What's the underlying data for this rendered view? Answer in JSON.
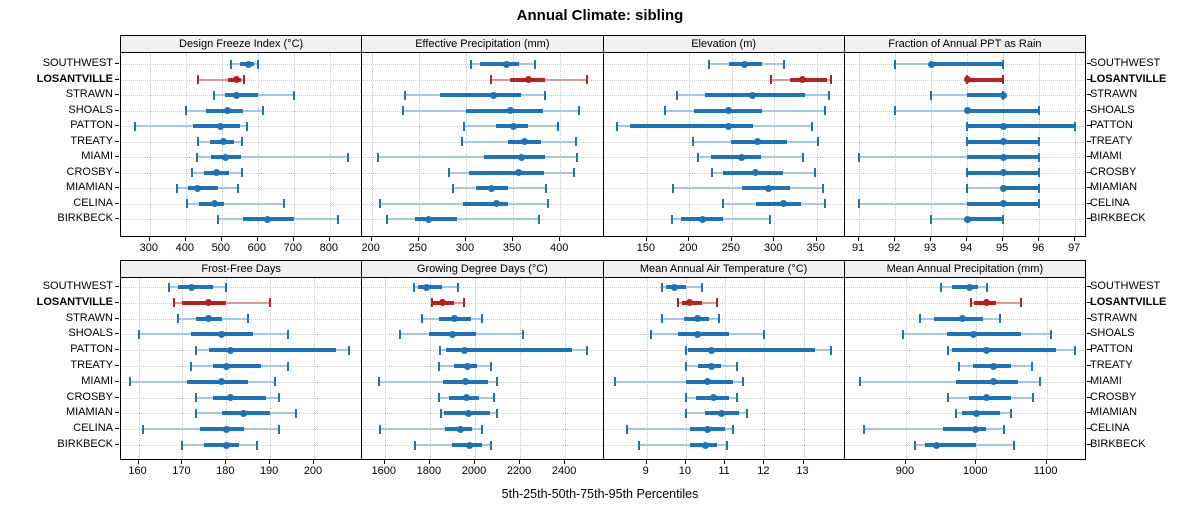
{
  "chart_data": {
    "type": "scatter",
    "style": "percentile-dot-whisker-lattice",
    "title": "Annual Climate: sibling",
    "caption": "5th-25th-50th-75th-95th Percentiles",
    "percentiles": [
      5,
      25,
      50,
      75,
      95
    ],
    "legend_position": "none",
    "grid": "dotted",
    "series": [
      "SOUTHWEST",
      "LOSANTVILLE",
      "STRAWN",
      "SHOALS",
      "PATTON",
      "TREATY",
      "MIAMI",
      "CROSBY",
      "MIAMIAN",
      "CELINA",
      "BIRKBECK"
    ],
    "highlighted_series": "LOSANTVILLE",
    "colors": {
      "normal": "#2171b5",
      "normal_light": "#a3c8e2",
      "highlight": "#b22222",
      "highlight_light": "#d89a9a",
      "grid": "#c8c8c8",
      "header_bg": "#f0f0f0",
      "border": "#000000"
    },
    "panels": [
      {
        "title": "Design Freeze Index (°C)",
        "ticks": [
          300,
          400,
          500,
          600,
          700,
          800
        ],
        "xlim": [
          220,
          890
        ],
        "rows": [
          [
            525,
            550,
            575,
            590,
            600
          ],
          [
            433,
            517,
            542,
            553,
            561
          ],
          [
            478,
            510,
            542,
            600,
            700
          ],
          [
            400,
            455,
            515,
            560,
            615
          ],
          [
            260,
            420,
            495,
            550,
            570
          ],
          [
            435,
            468,
            505,
            535,
            555
          ],
          [
            430,
            470,
            510,
            553,
            850
          ],
          [
            417,
            450,
            486,
            519,
            556
          ],
          [
            375,
            405,
            433,
            489,
            544
          ],
          [
            404,
            436,
            481,
            506,
            672
          ],
          [
            489,
            558,
            628,
            700,
            822
          ]
        ]
      },
      {
        "title": "Effective Precipitation (mm)",
        "ticks": [
          200,
          250,
          300,
          350,
          400
        ],
        "xlim": [
          190,
          446
        ],
        "rows": [
          [
            305,
            315,
            343,
            356,
            373
          ],
          [
            327,
            347,
            366,
            384,
            428
          ],
          [
            235,
            273,
            329,
            358,
            384
          ],
          [
            233,
            300,
            347,
            382,
            420
          ],
          [
            298,
            332,
            350,
            366,
            398
          ],
          [
            296,
            345,
            362,
            380,
            417
          ],
          [
            207,
            319,
            359,
            384,
            418
          ],
          [
            282,
            303,
            356,
            383,
            415
          ],
          [
            286,
            311,
            327,
            345,
            385
          ],
          [
            209,
            297,
            332,
            345,
            387
          ],
          [
            216,
            246,
            260,
            291,
            378
          ]
        ]
      },
      {
        "title": "Elevation (m)",
        "ticks": [
          150,
          200,
          250,
          300,
          350
        ],
        "xlim": [
          99,
          383
        ],
        "rows": [
          [
            223,
            247,
            265,
            286,
            312
          ],
          [
            296,
            318,
            333,
            362,
            367
          ],
          [
            185,
            219,
            274,
            336,
            364
          ],
          [
            171,
            206,
            246,
            286,
            360
          ],
          [
            115,
            130,
            246,
            275,
            345
          ],
          [
            204,
            249,
            280,
            315,
            352
          ],
          [
            210,
            226,
            261,
            285,
            334
          ],
          [
            227,
            240,
            278,
            310,
            348
          ],
          [
            181,
            262,
            293,
            319,
            357
          ],
          [
            240,
            278,
            311,
            331,
            360
          ],
          [
            180,
            190,
            216,
            240,
            295
          ]
        ]
      },
      {
        "title": "Fraction of Annual PPT as Rain",
        "ticks": [
          91,
          92,
          93,
          94,
          95,
          96,
          97
        ],
        "xlim": [
          90.6,
          97.3
        ],
        "rows": [
          [
            92,
            93,
            93,
            95,
            95
          ],
          [
            94,
            94,
            94,
            95,
            95
          ],
          [
            93,
            94,
            95,
            95,
            95
          ],
          [
            92,
            94,
            94,
            96,
            96
          ],
          [
            94,
            94,
            95,
            97,
            97
          ],
          [
            94,
            94,
            95,
            96,
            96
          ],
          [
            91,
            94,
            95,
            96,
            96
          ],
          [
            94,
            94,
            95,
            96,
            96
          ],
          [
            94,
            95,
            95,
            96,
            96
          ],
          [
            91,
            94,
            95,
            96,
            96
          ],
          [
            93,
            94,
            94,
            95,
            95
          ]
        ]
      },
      {
        "title": "Frost-Free Days",
        "ticks": [
          160,
          170,
          180,
          190,
          200
        ],
        "xlim": [
          156,
          211
        ],
        "rows": [
          [
            167,
            169,
            172,
            177,
            180
          ],
          [
            168,
            170,
            176,
            180,
            190
          ],
          [
            169,
            173,
            176,
            179,
            185
          ],
          [
            160,
            172,
            179,
            186,
            194
          ],
          [
            173,
            176,
            181,
            205,
            208
          ],
          [
            172,
            177,
            180,
            188,
            194
          ],
          [
            158,
            171,
            179,
            185,
            191
          ],
          [
            173,
            177,
            181,
            189,
            192
          ],
          [
            173,
            179,
            184,
            190,
            196
          ],
          [
            161,
            174,
            180,
            184,
            192
          ],
          [
            170,
            175,
            180,
            183,
            187
          ]
        ]
      },
      {
        "title": "Growing Degree Days (°C)",
        "ticks": [
          1600,
          1800,
          2000,
          2200,
          2400
        ],
        "xlim": [
          1500,
          2570
        ],
        "rows": [
          [
            1730,
            1748,
            1785,
            1855,
            1925
          ],
          [
            1808,
            1816,
            1854,
            1906,
            1952
          ],
          [
            1766,
            1841,
            1911,
            1981,
            2033
          ],
          [
            1666,
            1797,
            1902,
            2003,
            2213
          ],
          [
            1845,
            1871,
            1954,
            2430,
            2497
          ],
          [
            1841,
            1906,
            1968,
            2007,
            2073
          ],
          [
            1575,
            1858,
            1959,
            2060,
            2099
          ],
          [
            1841,
            1884,
            1963,
            2016,
            2086
          ],
          [
            1849,
            1863,
            1972,
            2068,
            2099
          ],
          [
            1578,
            1867,
            1937,
            1985,
            2033
          ],
          [
            1736,
            1897,
            1976,
            2029,
            2073
          ]
        ]
      },
      {
        "title": "Mean Annual Air Temperature (°C)",
        "ticks": [
          9,
          10,
          11,
          12,
          13
        ],
        "xlim": [
          7.9,
          14.05
        ],
        "rows": [
          [
            9.4,
            9.5,
            9.7,
            10.0,
            10.4
          ],
          [
            9.8,
            9.9,
            10.1,
            10.4,
            10.8
          ],
          [
            9.4,
            9.95,
            10.3,
            10.6,
            10.85
          ],
          [
            9.1,
            9.8,
            10.3,
            11.1,
            12.0
          ],
          [
            10.0,
            10.05,
            10.65,
            13.3,
            13.7
          ],
          [
            10.0,
            10.3,
            10.65,
            10.9,
            11.3
          ],
          [
            8.2,
            10.0,
            10.55,
            11.2,
            11.45
          ],
          [
            10.0,
            10.25,
            10.7,
            11.1,
            11.3
          ],
          [
            10.0,
            10.5,
            10.9,
            11.35,
            11.55
          ],
          [
            8.5,
            10.1,
            10.55,
            11.0,
            11.2
          ],
          [
            8.8,
            10.1,
            10.5,
            10.8,
            11.05
          ]
        ]
      },
      {
        "title": "Mean Annual Precipitation (mm)",
        "ticks": [
          900,
          1000,
          1100
        ],
        "xlim": [
          813,
          1156
        ],
        "rows": [
          [
            950,
            966,
            991,
            1003,
            1015
          ],
          [
            993,
            997,
            1014,
            1028,
            1063
          ],
          [
            920,
            940,
            980,
            1010,
            1034
          ],
          [
            896,
            959,
            996,
            1064,
            1106
          ],
          [
            960,
            966,
            1015,
            1114,
            1140
          ],
          [
            975,
            996,
            1025,
            1049,
            1079
          ],
          [
            835,
            971,
            1024,
            1060,
            1091
          ],
          [
            960,
            989,
            1014,
            1050,
            1080
          ],
          [
            971,
            980,
            1001,
            1034,
            1050
          ],
          [
            841,
            953,
            999,
            1014,
            1040
          ],
          [
            913,
            927,
            943,
            999,
            1053
          ]
        ]
      }
    ]
  }
}
